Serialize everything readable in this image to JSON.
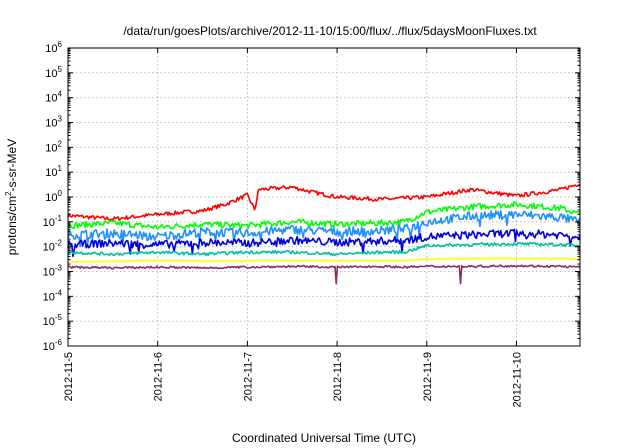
{
  "chart_data": {
    "type": "line",
    "title": "/data/run/goesPlots/archive/2012-11-10/15:00/flux/../flux/5daysMoonFluxes.txt",
    "xlabel": "Coordinated Universal Time (UTC)",
    "ylabel": {
      "base": "protons/cm",
      "sup": "2",
      "rest": "-s-sr-MeV"
    },
    "y_scale": "log",
    "ylim_exponents": [
      -6,
      6
    ],
    "y_ticks": [
      {
        "base": "10",
        "exp": "-6"
      },
      {
        "base": "10",
        "exp": "-5"
      },
      {
        "base": "10",
        "exp": "-4"
      },
      {
        "base": "10",
        "exp": "-3"
      },
      {
        "base": "10",
        "exp": "-2"
      },
      {
        "base": "10",
        "exp": "-1"
      },
      {
        "base": "10",
        "exp": "0"
      },
      {
        "base": "10",
        "exp": "1"
      },
      {
        "base": "10",
        "exp": "2"
      },
      {
        "base": "10",
        "exp": "3"
      },
      {
        "base": "10",
        "exp": "4"
      },
      {
        "base": "10",
        "exp": "5"
      },
      {
        "base": "10",
        "exp": "6"
      }
    ],
    "x_ticks": [
      "2012-11-5",
      "2012-11-6",
      "2012-11-7",
      "2012-11-8",
      "2012-11-9",
      "2012-11-10"
    ],
    "xlim_days": [
      "2012-11-05",
      "2012-11-10 17:00"
    ],
    "grid": true,
    "series": [
      {
        "color": "#ff0000",
        "x": [
          "2012-11-05",
          "2012-11-05 12:00",
          "2012-11-06",
          "2012-11-06 12:00",
          "2012-11-06 18:00",
          "2012-11-07 00:00",
          "2012-11-07 02:00",
          "2012-11-07 03:00",
          "2012-11-07 12:00",
          "2012-11-07 18:00",
          "2012-11-08 00:00",
          "2012-11-08 12:00",
          "2012-11-08 18:00",
          "2012-11-09 00:00",
          "2012-11-09 12:00",
          "2012-11-10 00:00",
          "2012-11-10 12:00",
          "2012-11-10 17:00"
        ],
        "y": [
          0.18,
          0.13,
          0.2,
          0.28,
          0.5,
          1.2,
          0.3,
          2.0,
          2.5,
          1.5,
          1.0,
          0.8,
          0.9,
          1.0,
          2.0,
          1.1,
          2.0,
          3.5
        ]
      },
      {
        "color": "#00ff00",
        "x": [
          "2012-11-05",
          "2012-11-05 12:00",
          "2012-11-06",
          "2012-11-06 12:00",
          "2012-11-07",
          "2012-11-07 12:00",
          "2012-11-08",
          "2012-11-08 12:00",
          "2012-11-08 18:00",
          "2012-11-09",
          "2012-11-09 12:00",
          "2012-11-10",
          "2012-11-10 12:00",
          "2012-11-10 17:00"
        ],
        "y": [
          0.07,
          0.09,
          0.06,
          0.08,
          0.07,
          0.1,
          0.08,
          0.09,
          0.1,
          0.25,
          0.4,
          0.5,
          0.35,
          0.2
        ]
      },
      {
        "color": "#1e90ff",
        "x": [
          "2012-11-05",
          "2012-11-05 12:00",
          "2012-11-06",
          "2012-11-06 12:00",
          "2012-11-07",
          "2012-11-07 12:00",
          "2012-11-08",
          "2012-11-08 12:00",
          "2012-11-08 18:00",
          "2012-11-09",
          "2012-11-09 12:00",
          "2012-11-10",
          "2012-11-10 12:00",
          "2012-11-10 17:00"
        ],
        "y": [
          0.03,
          0.035,
          0.025,
          0.04,
          0.035,
          0.05,
          0.04,
          0.045,
          0.05,
          0.1,
          0.17,
          0.2,
          0.15,
          0.1
        ]
      },
      {
        "color": "#0000dd",
        "x": [
          "2012-11-05",
          "2012-11-05 12:00",
          "2012-11-06",
          "2012-11-06 12:00",
          "2012-11-07",
          "2012-11-07 12:00",
          "2012-11-08",
          "2012-11-08 12:00",
          "2012-11-08 18:00",
          "2012-11-09",
          "2012-11-09 12:00",
          "2012-11-10",
          "2012-11-10 12:00",
          "2012-11-10 17:00"
        ],
        "y": [
          0.012,
          0.014,
          0.012,
          0.015,
          0.014,
          0.018,
          0.015,
          0.017,
          0.018,
          0.025,
          0.03,
          0.035,
          0.03,
          0.025
        ]
      },
      {
        "color": "#00c0a0",
        "x": [
          "2012-11-05",
          "2012-11-05 12:00",
          "2012-11-06",
          "2012-11-06 12:00",
          "2012-11-07",
          "2012-11-07 12:00",
          "2012-11-08",
          "2012-11-08 12:00",
          "2012-11-08 18:00",
          "2012-11-09",
          "2012-11-09 12:00",
          "2012-11-10",
          "2012-11-10 12:00",
          "2012-11-10 17:00"
        ],
        "y": [
          0.006,
          0.005,
          0.006,
          0.005,
          0.006,
          0.006,
          0.005,
          0.006,
          0.006,
          0.011,
          0.012,
          0.013,
          0.012,
          0.011
        ]
      },
      {
        "color": "#ffff00",
        "x": [
          "2012-11-05",
          "2012-11-05 12:00",
          "2012-11-06",
          "2012-11-06 12:00",
          "2012-11-07",
          "2012-11-07 12:00",
          "2012-11-08",
          "2012-11-08 12:00",
          "2012-11-08 18:00",
          "2012-11-09",
          "2012-11-09 12:00",
          "2012-11-10",
          "2012-11-10 12:00",
          "2012-11-10 17:00"
        ],
        "y": [
          0.0025,
          0.0025,
          0.0028,
          0.0026,
          0.0027,
          0.0028,
          0.0027,
          0.0028,
          0.0028,
          0.0032,
          0.0033,
          0.0034,
          0.0033,
          0.0033
        ]
      },
      {
        "color": "#8b2c6b",
        "x": [
          "2012-11-05",
          "2012-11-05 12:00",
          "2012-11-06",
          "2012-11-06 12:00",
          "2012-11-07",
          "2012-11-07 12:00",
          "2012-11-08",
          "2012-11-08 12:00",
          "2012-11-08 18:00",
          "2012-11-09",
          "2012-11-09 12:00",
          "2012-11-10",
          "2012-11-10 12:00",
          "2012-11-10 17:00"
        ],
        "y": [
          0.0015,
          0.0014,
          0.0015,
          0.0014,
          0.0015,
          0.0016,
          0.0015,
          0.0016,
          0.0015,
          0.0016,
          0.0016,
          0.0017,
          0.0016,
          0.0015
        ]
      }
    ]
  }
}
